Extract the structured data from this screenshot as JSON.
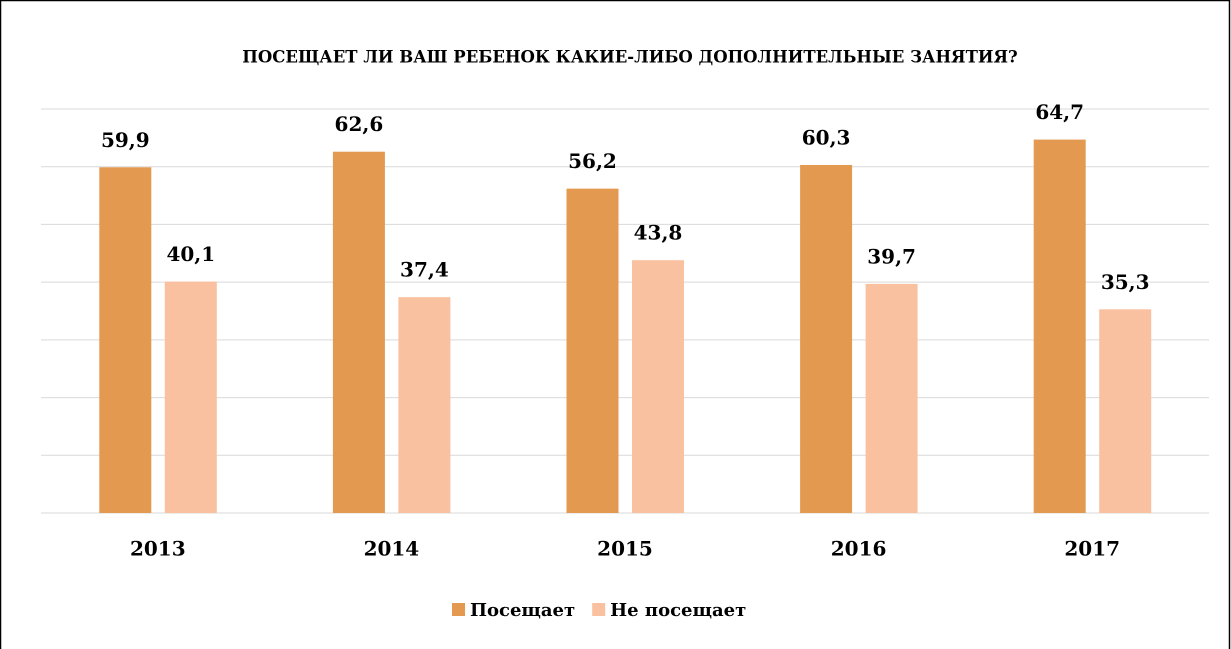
{
  "chart_data": {
    "type": "bar",
    "title": "ПОСЕЩАЕТ ЛИ ВАШ РЕБЕНОК КАКИЕ-ЛИБО ДОПОЛНИТЕЛЬНЫЕ ЗАНЯТИЯ?",
    "categories": [
      "2013",
      "2014",
      "2015",
      "2016",
      "2017"
    ],
    "series": [
      {
        "name": "Посещает",
        "color": "#e3994f",
        "values": [
          59.9,
          62.6,
          56.2,
          60.3,
          64.7
        ],
        "value_labels": [
          "59,9",
          "62,6",
          "56,2",
          "60,3",
          "64,7"
        ]
      },
      {
        "name": "Не посещает",
        "color": "#fac1a0",
        "values": [
          40.1,
          37.4,
          43.8,
          39.7,
          35.3
        ],
        "value_labels": [
          "40,1",
          "37,4",
          "43,8",
          "39,7",
          "35,3"
        ]
      }
    ],
    "ylim": [
      0,
      70
    ],
    "yticks": [
      0,
      10,
      20,
      30,
      40,
      50,
      60,
      70
    ],
    "grid": true,
    "legend": "bottom"
  }
}
